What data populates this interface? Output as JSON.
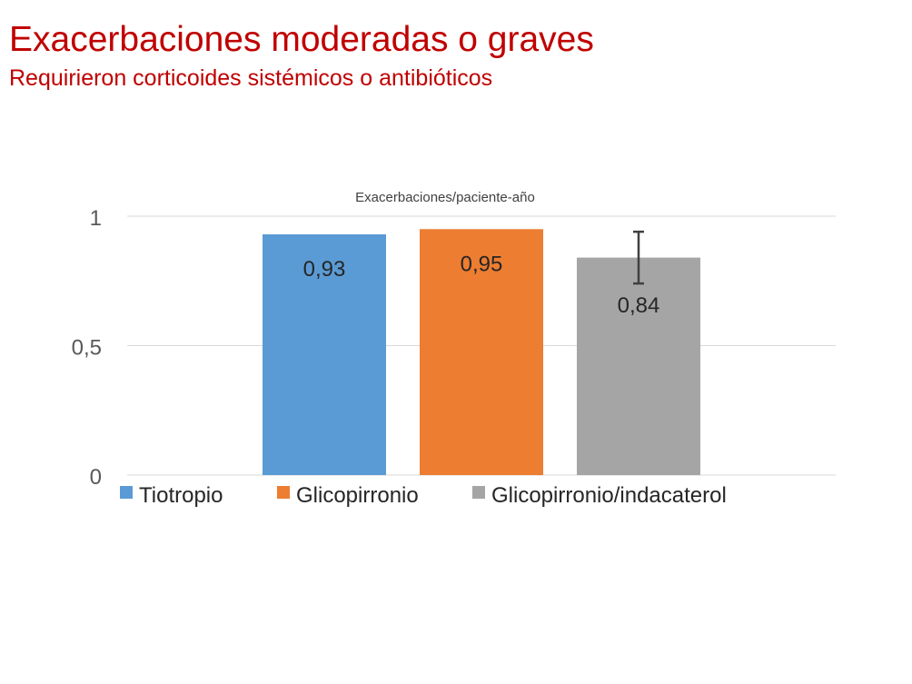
{
  "slide": {
    "title": "Exacerbaciones moderadas o graves",
    "subtitle": "Requirieron corticoides sistémicos o antibióticos",
    "title_color": "#C00000"
  },
  "chart_data": {
    "type": "bar",
    "title": "Exacerbaciones/paciente-año",
    "xlabel": "",
    "ylabel": "",
    "ylim": [
      0,
      1
    ],
    "yticks": [
      {
        "value": 0,
        "label": "0"
      },
      {
        "value": 0.5,
        "label": "0,5"
      },
      {
        "value": 1,
        "label": "1"
      }
    ],
    "grid": true,
    "legend_position": "bottom",
    "series": [
      {
        "name": "Tiotropio",
        "value": 0.93,
        "label": "0,93",
        "color": "#5B9BD5",
        "label_position": "inside-top"
      },
      {
        "name": "Glicopirronio",
        "value": 0.95,
        "label": "0,95",
        "color": "#ED7D31",
        "label_position": "inside-top"
      },
      {
        "name": "Glicopirronio/indacaterol",
        "value": 0.84,
        "label": "0,84",
        "color": "#A5A5A5",
        "label_position": "below-error-bar",
        "error_bar": {
          "low": 0.74,
          "high": 0.94
        }
      }
    ]
  }
}
